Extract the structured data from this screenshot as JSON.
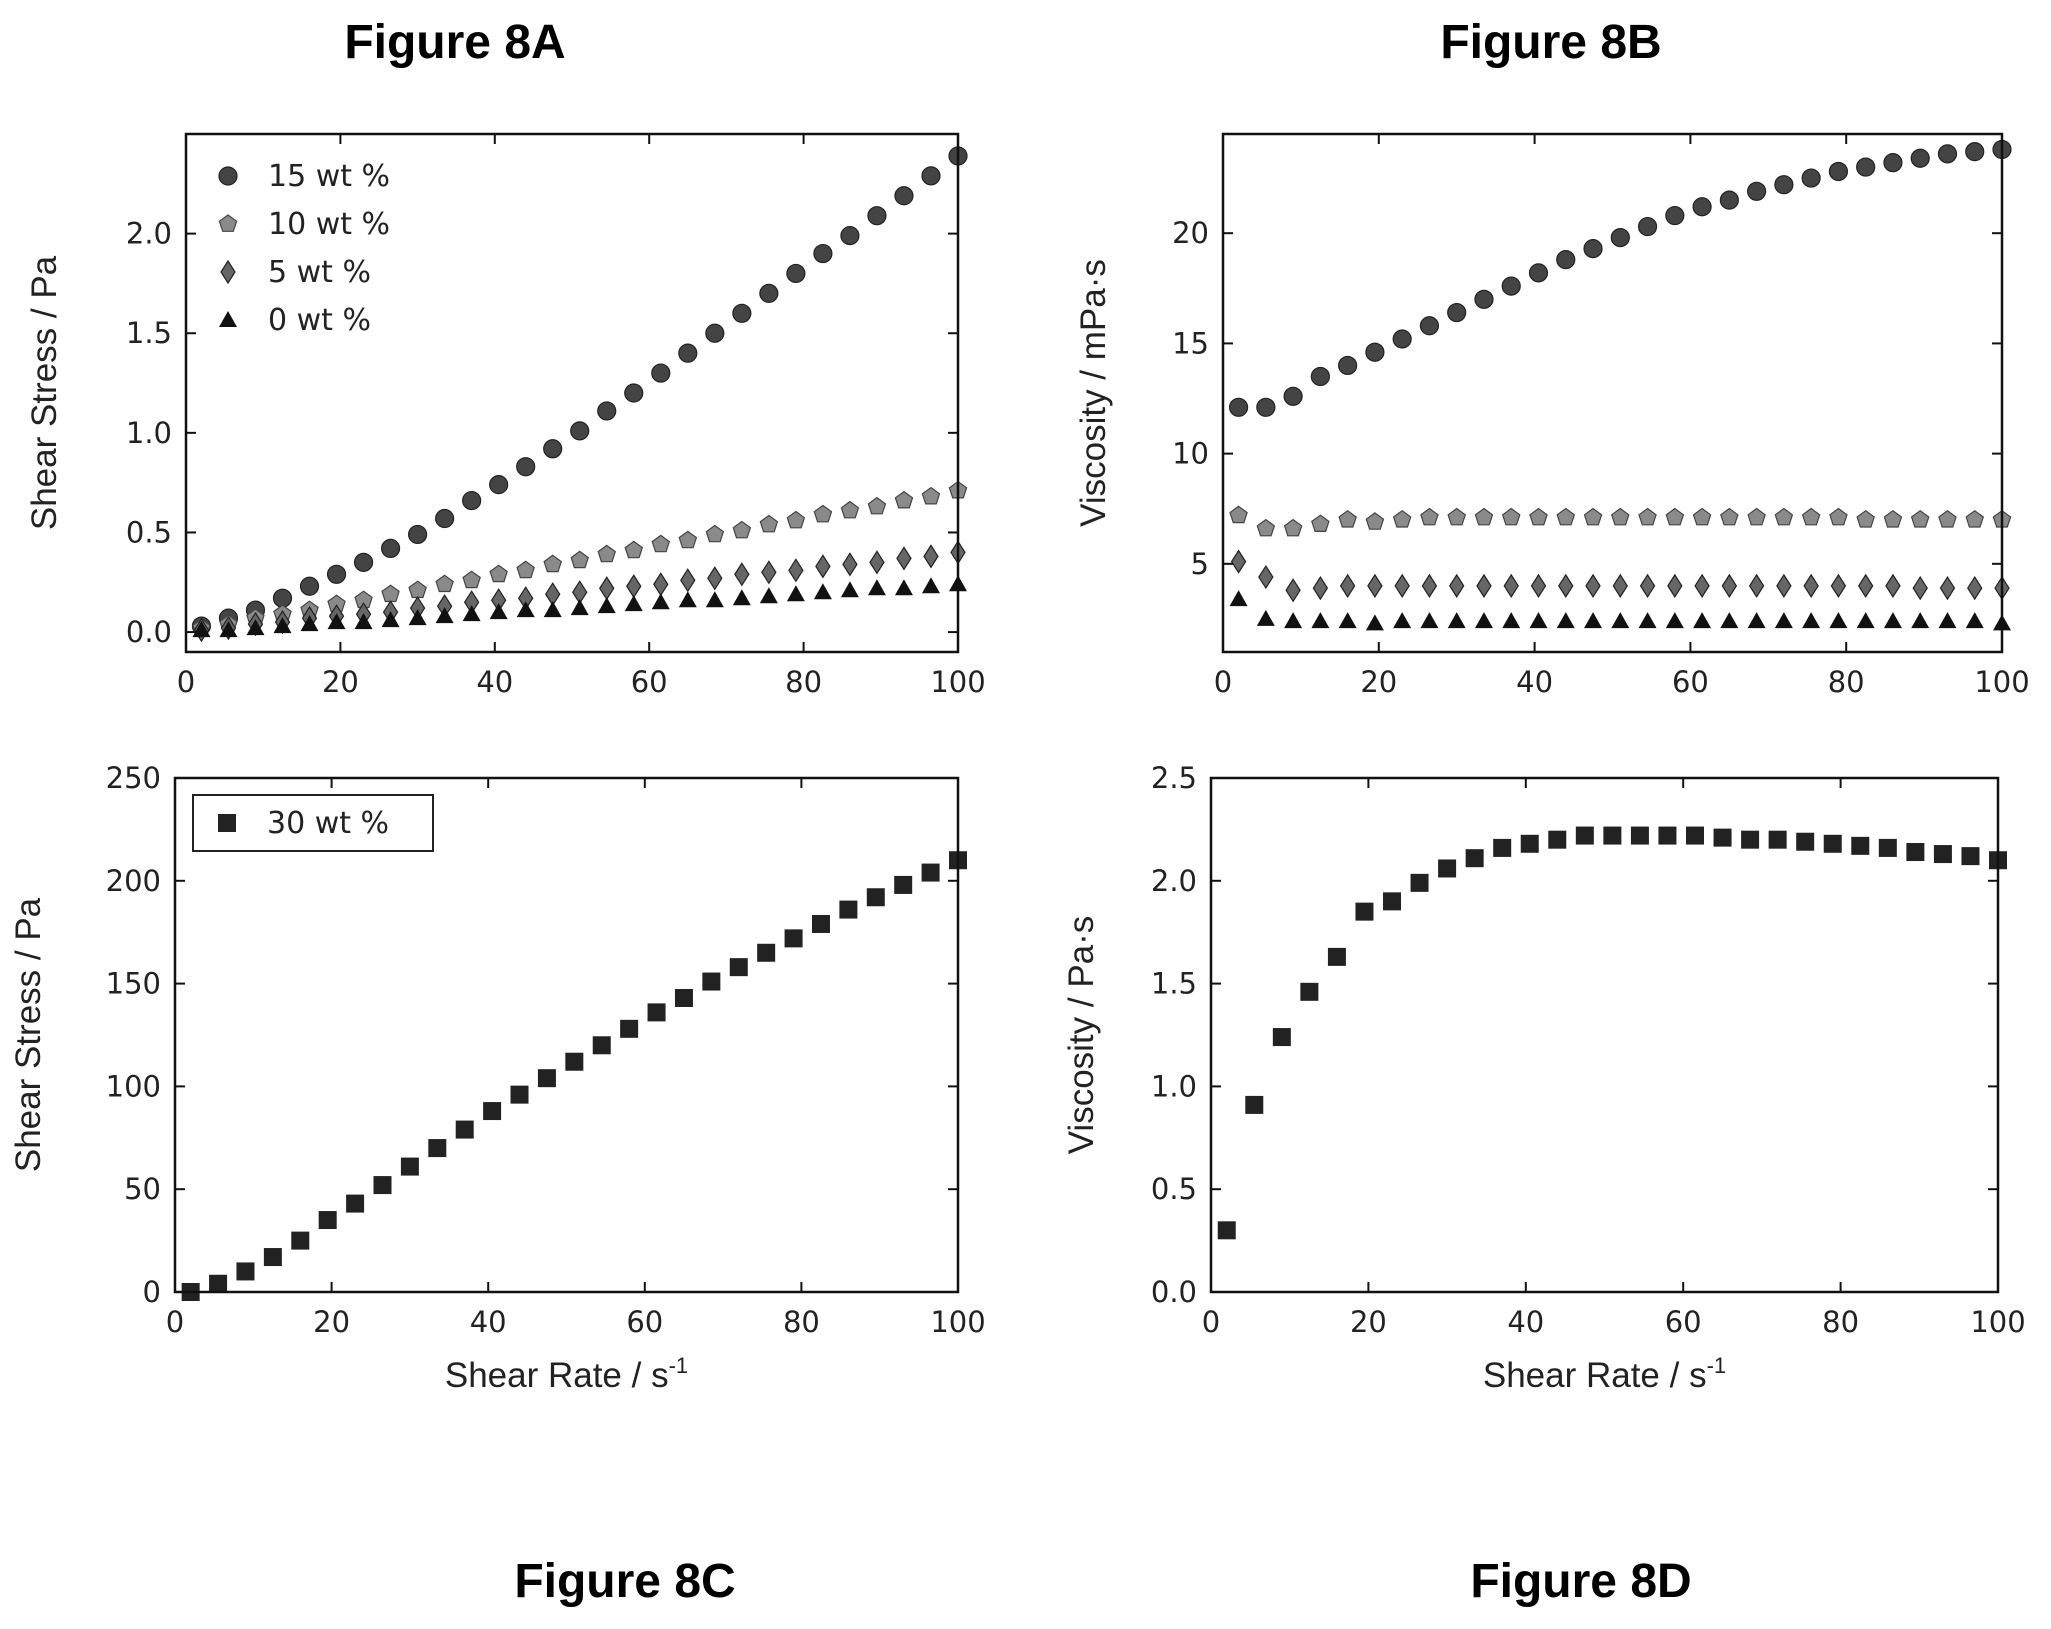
{
  "chart_data": [
    {
      "id": "8A",
      "figure_title": "Figure 8A",
      "type": "scatter",
      "xlabel": "",
      "ylabel": "Shear Stress / Pa",
      "xlim": [
        0,
        100
      ],
      "ylim": [
        -0.1,
        2.5
      ],
      "xticks": [
        0,
        20,
        40,
        60,
        80,
        100
      ],
      "yticks": [
        0.0,
        0.5,
        1.0,
        1.5,
        2.0
      ],
      "ytick_decimals": 1,
      "legend": "top-left",
      "x": [
        2,
        5.5,
        9,
        12.5,
        16,
        19.5,
        23,
        26.5,
        30,
        33.5,
        37,
        40.5,
        44,
        47.5,
        51,
        54.5,
        58,
        61.5,
        65,
        68.5,
        72,
        75.5,
        79,
        82.5,
        86,
        89.5,
        93,
        96.5,
        100
      ],
      "series": [
        {
          "name": "15 wt %",
          "marker": "circle",
          "color": "#444444",
          "values": [
            0.03,
            0.07,
            0.11,
            0.17,
            0.23,
            0.29,
            0.35,
            0.42,
            0.49,
            0.57,
            0.66,
            0.74,
            0.83,
            0.92,
            1.01,
            1.11,
            1.2,
            1.3,
            1.4,
            1.5,
            1.6,
            1.7,
            1.8,
            1.9,
            1.99,
            2.09,
            2.19,
            2.29,
            2.39
          ]
        },
        {
          "name": "10 wt %",
          "marker": "pentagon",
          "color": "#8a8a8a",
          "values": [
            0.02,
            0.04,
            0.07,
            0.09,
            0.11,
            0.14,
            0.16,
            0.19,
            0.21,
            0.24,
            0.26,
            0.29,
            0.31,
            0.34,
            0.36,
            0.39,
            0.41,
            0.44,
            0.46,
            0.49,
            0.51,
            0.54,
            0.56,
            0.59,
            0.61,
            0.63,
            0.66,
            0.68,
            0.71
          ]
        },
        {
          "name": "5 wt %",
          "marker": "diamond",
          "color": "#666666",
          "values": [
            0.01,
            0.02,
            0.04,
            0.05,
            0.07,
            0.08,
            0.09,
            0.1,
            0.12,
            0.13,
            0.15,
            0.16,
            0.17,
            0.19,
            0.2,
            0.22,
            0.23,
            0.24,
            0.26,
            0.27,
            0.29,
            0.3,
            0.31,
            0.33,
            0.34,
            0.35,
            0.37,
            0.38,
            0.4
          ]
        },
        {
          "name": "0 wt %",
          "marker": "triangle",
          "color": "#111111",
          "values": [
            0.01,
            0.01,
            0.02,
            0.03,
            0.04,
            0.05,
            0.05,
            0.06,
            0.07,
            0.08,
            0.09,
            0.1,
            0.11,
            0.11,
            0.12,
            0.13,
            0.14,
            0.15,
            0.16,
            0.16,
            0.17,
            0.18,
            0.19,
            0.2,
            0.21,
            0.22,
            0.22,
            0.23,
            0.24
          ]
        }
      ]
    },
    {
      "id": "8B",
      "figure_title": "Figure 8B",
      "type": "scatter",
      "xlabel": "",
      "ylabel": "Viscosity / mPa·s",
      "xlim": [
        0,
        100
      ],
      "ylim": [
        1,
        24.5
      ],
      "xticks": [
        0,
        20,
        40,
        60,
        80,
        100
      ],
      "yticks": [
        5,
        10,
        15,
        20
      ],
      "ytick_decimals": 0,
      "legend": "none",
      "x": [
        2,
        5.5,
        9,
        12.5,
        16,
        19.5,
        23,
        26.5,
        30,
        33.5,
        37,
        40.5,
        44,
        47.5,
        51,
        54.5,
        58,
        61.5,
        65,
        68.5,
        72,
        75.5,
        79,
        82.5,
        86,
        89.5,
        93,
        96.5,
        100
      ],
      "series": [
        {
          "name": "15 wt %",
          "marker": "circle",
          "color": "#444444",
          "values": [
            12.1,
            12.1,
            12.6,
            13.5,
            14.0,
            14.6,
            15.2,
            15.8,
            16.4,
            17.0,
            17.6,
            18.2,
            18.8,
            19.3,
            19.8,
            20.3,
            20.8,
            21.2,
            21.5,
            21.9,
            22.2,
            22.5,
            22.8,
            23.0,
            23.2,
            23.4,
            23.6,
            23.7,
            23.8
          ]
        },
        {
          "name": "10 wt %",
          "marker": "pentagon",
          "color": "#8a8a8a",
          "values": [
            7.2,
            6.6,
            6.6,
            6.8,
            7.0,
            6.9,
            7.0,
            7.1,
            7.1,
            7.1,
            7.1,
            7.1,
            7.1,
            7.1,
            7.1,
            7.1,
            7.1,
            7.1,
            7.1,
            7.1,
            7.1,
            7.1,
            7.1,
            7.0,
            7.0,
            7.0,
            7.0,
            7.0,
            7.0
          ]
        },
        {
          "name": "5 wt %",
          "marker": "diamond",
          "color": "#666666",
          "values": [
            5.1,
            4.4,
            3.8,
            3.9,
            4.0,
            4.0,
            4.0,
            4.0,
            4.0,
            4.0,
            4.0,
            4.0,
            4.0,
            4.0,
            4.0,
            4.0,
            4.0,
            4.0,
            4.0,
            4.0,
            4.0,
            4.0,
            4.0,
            4.0,
            4.0,
            3.9,
            3.9,
            3.9,
            3.9
          ]
        },
        {
          "name": "0 wt %",
          "marker": "triangle",
          "color": "#111111",
          "values": [
            3.4,
            2.5,
            2.4,
            2.4,
            2.4,
            2.3,
            2.4,
            2.4,
            2.4,
            2.4,
            2.4,
            2.4,
            2.4,
            2.4,
            2.4,
            2.4,
            2.4,
            2.4,
            2.4,
            2.4,
            2.4,
            2.4,
            2.4,
            2.4,
            2.4,
            2.4,
            2.4,
            2.4,
            2.3
          ]
        }
      ]
    },
    {
      "id": "8C",
      "figure_title": "Figure 8C",
      "type": "scatter",
      "xlabel": "Shear Rate / s",
      "xlabel_sup": "-1",
      "ylabel": "Shear Stress / Pa",
      "xlim": [
        0,
        100
      ],
      "ylim": [
        0,
        250
      ],
      "xticks": [
        0,
        20,
        40,
        60,
        80,
        100
      ],
      "yticks": [
        0,
        50,
        100,
        150,
        200,
        250
      ],
      "ytick_decimals": 0,
      "legend": "top-left",
      "x": [
        2,
        5.5,
        9,
        12.5,
        16,
        19.5,
        23,
        26.5,
        30,
        33.5,
        37,
        40.5,
        44,
        47.5,
        51,
        54.5,
        58,
        61.5,
        65,
        68.5,
        72,
        75.5,
        79,
        82.5,
        86,
        89.5,
        93,
        96.5,
        100
      ],
      "series": [
        {
          "name": "30 wt %",
          "marker": "square",
          "color": "#222222",
          "values": [
            0,
            4,
            10,
            17,
            25,
            35,
            43,
            52,
            61,
            70,
            79,
            88,
            96,
            104,
            112,
            120,
            128,
            136,
            143,
            151,
            158,
            165,
            172,
            179,
            186,
            192,
            198,
            204,
            210
          ]
        }
      ]
    },
    {
      "id": "8D",
      "figure_title": "Figure 8D",
      "type": "scatter",
      "xlabel": "Shear Rate / s",
      "xlabel_sup": "-1",
      "ylabel": "Viscosity / Pa·s",
      "xlim": [
        0,
        100
      ],
      "ylim": [
        0,
        2.5
      ],
      "xticks": [
        0,
        20,
        40,
        60,
        80,
        100
      ],
      "yticks": [
        0.0,
        0.5,
        1.0,
        1.5,
        2.0,
        2.5
      ],
      "ytick_decimals": 1,
      "legend": "none",
      "x": [
        2,
        5.5,
        9,
        12.5,
        16,
        19.5,
        23,
        26.5,
        30,
        33.5,
        37,
        40.5,
        44,
        47.5,
        51,
        54.5,
        58,
        61.5,
        65,
        68.5,
        72,
        75.5,
        79,
        82.5,
        86,
        89.5,
        93,
        96.5,
        100
      ],
      "series": [
        {
          "name": "30 wt %",
          "marker": "square",
          "color": "#222222",
          "values": [
            0.3,
            0.91,
            1.24,
            1.46,
            1.63,
            1.85,
            1.9,
            1.99,
            2.06,
            2.11,
            2.16,
            2.18,
            2.2,
            2.22,
            2.22,
            2.22,
            2.22,
            2.22,
            2.21,
            2.2,
            2.2,
            2.19,
            2.18,
            2.17,
            2.16,
            2.14,
            2.13,
            2.12,
            2.1
          ]
        }
      ]
    }
  ]
}
